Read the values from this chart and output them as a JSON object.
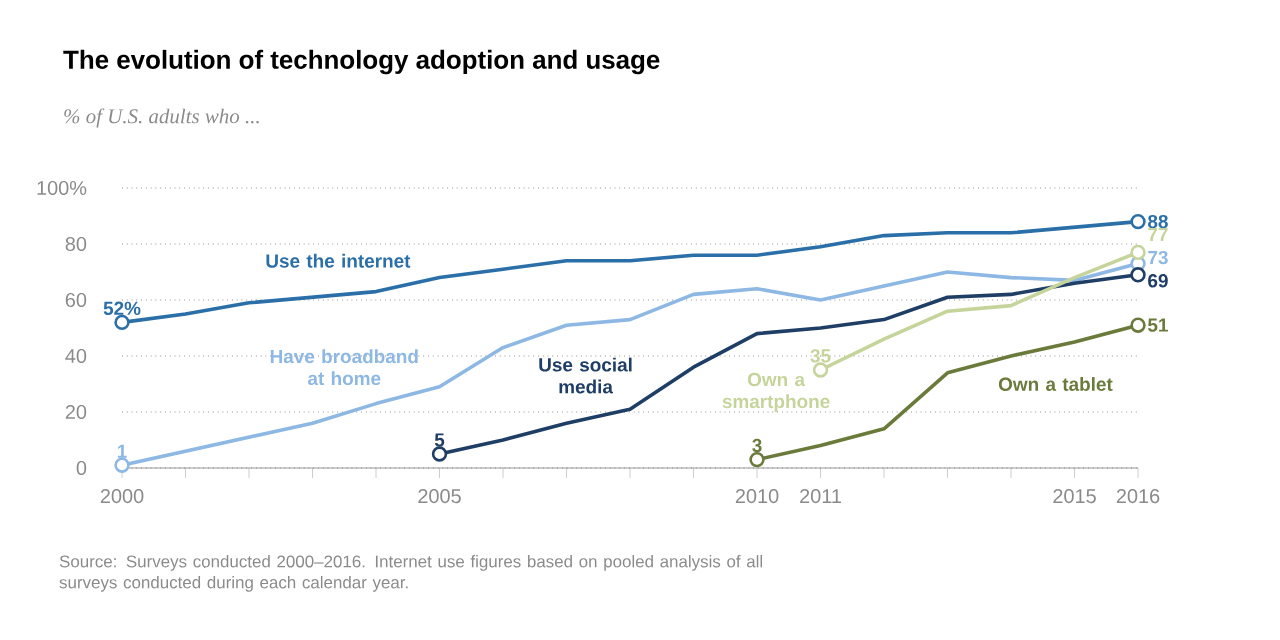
{
  "chart_data": {
    "type": "line",
    "title": "The evolution of technology adoption and usage",
    "subtitle": "% of U.S. adults who ...",
    "x": [
      2000,
      2001,
      2002,
      2003,
      2004,
      2005,
      2006,
      2007,
      2008,
      2009,
      2010,
      2011,
      2012,
      2013,
      2014,
      2015,
      2016
    ],
    "series": [
      {
        "name": "Use the internet",
        "color": "#2a6fa8",
        "values": [
          52,
          55,
          59,
          61,
          63,
          68,
          71,
          74,
          74,
          76,
          76,
          79,
          83,
          84,
          84,
          86,
          88
        ],
        "value_labels": [
          "52%",
          null,
          null,
          null,
          null,
          null,
          null,
          null,
          null,
          null,
          null,
          null,
          null,
          null,
          null,
          null,
          "88"
        ]
      },
      {
        "name": "Have broadband at home",
        "color": "#8db8e3",
        "values": [
          1,
          6,
          11,
          16,
          23,
          29,
          43,
          51,
          53,
          62,
          64,
          60,
          65,
          70,
          68,
          67,
          73
        ],
        "value_labels": [
          "1",
          null,
          null,
          null,
          null,
          null,
          null,
          null,
          null,
          null,
          null,
          null,
          null,
          null,
          null,
          null,
          "73"
        ]
      },
      {
        "name": "Use social media",
        "color": "#1f3e66",
        "values": [
          null,
          null,
          null,
          null,
          null,
          5,
          10,
          16,
          21,
          36,
          48,
          50,
          53,
          61,
          62,
          66,
          69
        ],
        "value_labels": [
          null,
          null,
          null,
          null,
          null,
          "5",
          null,
          null,
          null,
          null,
          null,
          null,
          null,
          null,
          null,
          null,
          "69"
        ]
      },
      {
        "name": "Own a smartphone",
        "color": "#c5d49a",
        "values": [
          null,
          null,
          null,
          null,
          null,
          null,
          null,
          null,
          null,
          null,
          null,
          35,
          46,
          56,
          58,
          68,
          77
        ],
        "value_labels": [
          null,
          null,
          null,
          null,
          null,
          null,
          null,
          null,
          null,
          null,
          null,
          "35",
          null,
          null,
          null,
          null,
          "77"
        ]
      },
      {
        "name": "Own a tablet",
        "color": "#6a7a3a",
        "values": [
          null,
          null,
          null,
          null,
          null,
          null,
          null,
          null,
          null,
          null,
          3,
          8,
          14,
          34,
          40,
          45,
          51
        ],
        "value_labels": [
          null,
          null,
          null,
          null,
          null,
          null,
          null,
          null,
          null,
          null,
          "3",
          null,
          null,
          null,
          null,
          null,
          "51"
        ]
      }
    ],
    "xlim": [
      2000,
      2016
    ],
    "ylim": [
      0,
      100
    ],
    "xticks": [
      2000,
      {
        "value": 2001,
        "label": null
      },
      {
        "value": 2002,
        "label": null
      },
      {
        "value": 2003,
        "label": null
      },
      {
        "value": 2004,
        "label": null
      },
      2005,
      {
        "value": 2006,
        "label": null
      },
      {
        "value": 2007,
        "label": null
      },
      {
        "value": 2008,
        "label": null
      },
      {
        "value": 2009,
        "label": null
      },
      2010,
      2011,
      {
        "value": 2012,
        "label": null
      },
      {
        "value": 2013,
        "label": null
      },
      {
        "value": 2014,
        "label": null
      },
      2015,
      2016
    ],
    "yticks": [
      0,
      20,
      40,
      60,
      80,
      {
        "value": 100,
        "label": "100%"
      }
    ],
    "grid": "y",
    "annotations": [
      "Source: Surveys conducted 2000–2016. Internet use figures based on pooled analysis of all surveys conducted during each calendar year."
    ]
  }
}
